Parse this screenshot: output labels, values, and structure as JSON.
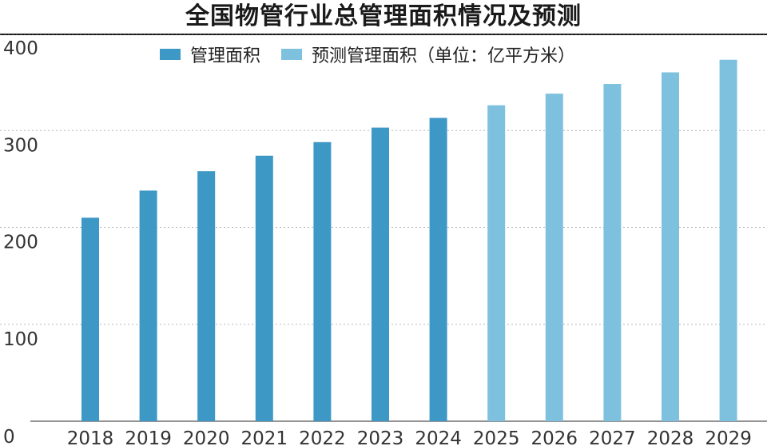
{
  "colors": {
    "actual": "#3d98c6",
    "forecast": "#7ec1df",
    "grid": "#b8b8b8",
    "axis": "#555555"
  },
  "chart_data": {
    "type": "bar",
    "title": "全国物管行业总管理面积情况及预测",
    "categories": [
      "2018",
      "2019",
      "2020",
      "2021",
      "2022",
      "2023",
      "2024",
      "2025",
      "2026",
      "2027",
      "2028",
      "2029"
    ],
    "series": [
      {
        "name": "管理面积",
        "values": [
          210,
          238,
          258,
          274,
          288,
          303,
          313,
          null,
          null,
          null,
          null,
          null
        ]
      },
      {
        "name": "预测管理面积（单位：亿平方米）",
        "values": [
          null,
          null,
          null,
          null,
          null,
          null,
          null,
          326,
          338,
          348,
          360,
          373
        ]
      }
    ],
    "yticks": [
      0,
      100,
      200,
      300,
      400
    ],
    "ylim": [
      0,
      400
    ],
    "grid": true,
    "legend_position": "top"
  }
}
